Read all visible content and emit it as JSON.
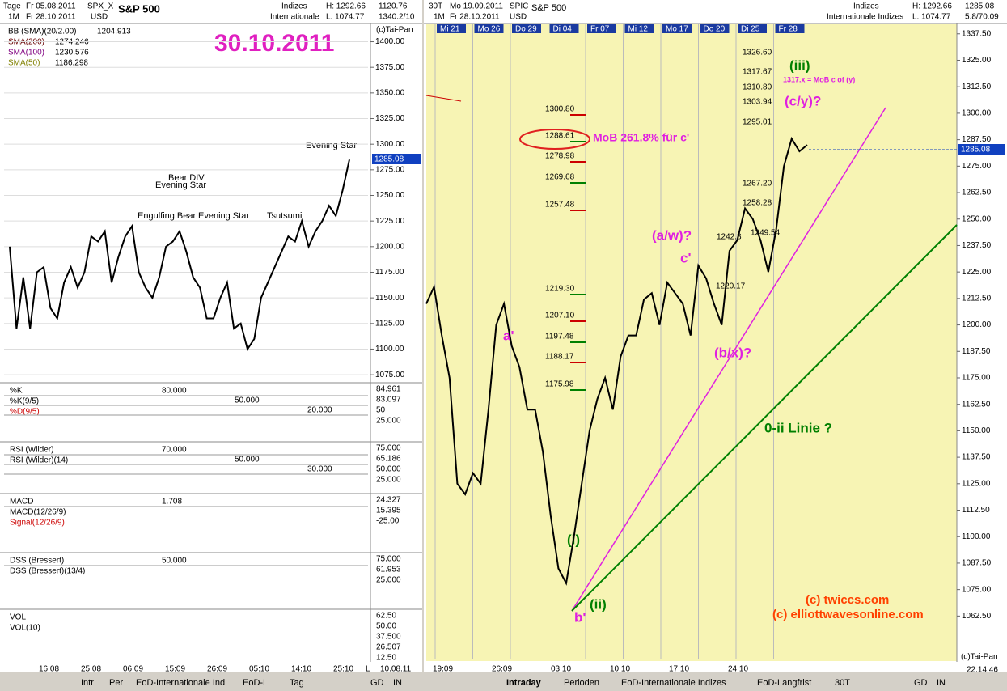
{
  "left": {
    "header": {
      "period": "Tage",
      "from": "Fr 05.08.2011",
      "symbol": "SPX_X",
      "name": "S&P 500",
      "range": "1M",
      "to": "Fr 28.10.2011",
      "currency": "USD",
      "market": "Indizes",
      "exchange": "Internationale",
      "high": "H: 1292.66",
      "low": "L: 1074.77",
      "v1": "1120.76",
      "v2": "1340.2/10"
    },
    "date_title": "30.10.2011",
    "copyright": "(c)Tai-Pan",
    "legend": [
      {
        "name": "BB (SMA)(20/2.00)",
        "value": "1204.913"
      },
      {
        "name": "SMA(200)",
        "value": "1274.246"
      },
      {
        "name": "SMA(100)",
        "value": "1230.576"
      },
      {
        "name": "SMA(50)",
        "value": "1186.298"
      }
    ],
    "annotations": [
      "Evening Star",
      "Bear DIV",
      "Evening Star",
      "Engulfing Bear",
      "Evening Star",
      "Tsutsumi"
    ],
    "price_tag": "1285.08",
    "chart": {
      "type": "line",
      "values": [
        1200,
        1120,
        1170,
        1120,
        1175,
        1180,
        1140,
        1130,
        1165,
        1180,
        1160,
        1175,
        1210,
        1205,
        1215,
        1165,
        1190,
        1210,
        1220,
        1175,
        1160,
        1150,
        1170,
        1200,
        1205,
        1215,
        1195,
        1170,
        1160,
        1130,
        1130,
        1150,
        1165,
        1120,
        1125,
        1100,
        1110,
        1150,
        1165,
        1180,
        1195,
        1210,
        1205,
        1225,
        1200,
        1215,
        1225,
        1240,
        1230,
        1255,
        1285
      ],
      "color": "#000000",
      "ylim": [
        1068,
        1417
      ],
      "yticks": [
        {
          "value": 1400,
          "label": "1400.00"
        },
        {
          "value": 1375,
          "label": "1375.00"
        },
        {
          "value": 1350,
          "label": "1350.00"
        },
        {
          "value": 1325,
          "label": "1325.00"
        },
        {
          "value": 1300,
          "label": "1300.00"
        },
        {
          "value": 1275,
          "label": "1275.00"
        },
        {
          "value": 1250,
          "label": "1250.00"
        },
        {
          "value": 1225,
          "label": "1225.00"
        },
        {
          "value": 1200,
          "label": "1200.00"
        },
        {
          "value": 1175,
          "label": "1175.00"
        },
        {
          "value": 1150,
          "label": "1150.00"
        },
        {
          "value": 1125,
          "label": "1125.00"
        },
        {
          "value": 1100,
          "label": "1100.00"
        },
        {
          "value": 1075,
          "label": "1075.00"
        }
      ]
    },
    "panels": [
      {
        "title": "%K",
        "lines": [
          "%K(9/5)",
          "%D(9/5)"
        ],
        "levels": [
          "80.000",
          "50.000",
          "20.000"
        ],
        "scale": [
          "84.961",
          "83.097",
          "50",
          "25.000"
        ]
      },
      {
        "title": "RSI (Wilder)",
        "lines": [
          "RSI (Wilder)(14)"
        ],
        "levels": [
          "70.000",
          "50.000",
          "30.000"
        ],
        "scale": [
          "75.000",
          "65.186",
          "50.000",
          "25.000"
        ]
      },
      {
        "title": "MACD",
        "lines": [
          "MACD(12/26/9)",
          "Signal(12/26/9)"
        ],
        "levels": [
          "1.708"
        ],
        "scale": [
          "24.327",
          "15.395",
          "-25.00"
        ]
      },
      {
        "title": "DSS (Bressert)",
        "lines": [
          "DSS (Bressert)(13/4)"
        ],
        "levels": [
          "50.000"
        ],
        "scale": [
          "75.000",
          "61.953",
          "25.000"
        ]
      },
      {
        "title": "VOL",
        "lines": [
          "VOL(10)"
        ],
        "levels": [],
        "scale": [
          "62.50",
          "50.00",
          "37.500",
          "26.507",
          "12.50"
        ]
      }
    ],
    "xlabels": [
      "16:08",
      "25:08",
      "06:09",
      "15:09",
      "26:09",
      "05:10",
      "14:10",
      "25:10",
      "L",
      "10.08.11"
    ],
    "tabs": [
      "Intr",
      "Per",
      "EoD-Internationale Ind",
      "EoD-L",
      "Tag",
      "GD",
      "IN"
    ]
  },
  "right": {
    "header": {
      "period": "30T",
      "from": "Mo 19.09.2011",
      "symbol": "SPIC",
      "name": "S&P 500",
      "range": "1M",
      "to": "Fr 28.10.2011",
      "currency": "USD",
      "market": "Indizes",
      "exchange": "Internationale Indizes",
      "high": "H: 1292.66",
      "low": "L: 1074.77",
      "v1": "1285.08",
      "v2": "5.8/70.09"
    },
    "days": [
      "Mi 21",
      "Mo 26",
      "Do 29",
      "Di 04",
      "Fr 07",
      "Mi 12",
      "Mo 17",
      "Do 20",
      "Di 25",
      "Fr 28"
    ],
    "chart": {
      "type": "line",
      "values": [
        1210,
        1218,
        1195,
        1175,
        1125,
        1120,
        1130,
        1125,
        1160,
        1200,
        1210,
        1190,
        1180,
        1160,
        1160,
        1140,
        1110,
        1085,
        1078,
        1100,
        1125,
        1150,
        1165,
        1175,
        1160,
        1185,
        1195,
        1195,
        1212,
        1215,
        1200,
        1220,
        1215,
        1210,
        1195,
        1228,
        1222,
        1210,
        1200,
        1235,
        1240,
        1255,
        1250,
        1240,
        1225,
        1245,
        1275,
        1288,
        1282,
        1285
      ],
      "color": "#000000",
      "ylim": [
        1042,
        1342
      ],
      "yticks": [
        {
          "value": 1337.5,
          "label": "1337.50"
        },
        {
          "value": 1325,
          "label": "1325.00"
        },
        {
          "value": 1312.5,
          "label": "1312.50"
        },
        {
          "value": 1300,
          "label": "1300.00"
        },
        {
          "value": 1287.5,
          "label": "1287.50"
        },
        {
          "value": 1275,
          "label": "1275.00"
        },
        {
          "value": 1262.5,
          "label": "1262.50"
        },
        {
          "value": 1250,
          "label": "1250.00"
        },
        {
          "value": 1237.5,
          "label": "1237.50"
        },
        {
          "value": 1225,
          "label": "1225.00"
        },
        {
          "value": 1212.5,
          "label": "1212.50"
        },
        {
          "value": 1200,
          "label": "1200.00"
        },
        {
          "value": 1187.5,
          "label": "1187.50"
        },
        {
          "value": 1175,
          "label": "1175.00"
        },
        {
          "value": 1162.5,
          "label": "1162.50"
        },
        {
          "value": 1150,
          "label": "1150.00"
        },
        {
          "value": 1137.5,
          "label": "1137.50"
        },
        {
          "value": 1125,
          "label": "1125.00"
        },
        {
          "value": 1112.5,
          "label": "1112.50"
        },
        {
          "value": 1100,
          "label": "1100.00"
        },
        {
          "value": 1087.5,
          "label": "1087.50"
        },
        {
          "value": 1075,
          "label": "1075.00"
        },
        {
          "value": 1062.5,
          "label": "1062.50"
        }
      ]
    },
    "levels_a": [
      "1300.80",
      "1288.61",
      "1278.98",
      "1269.68",
      "1257.48",
      "1219.30",
      "1207.10",
      "1197.48",
      "1188.17",
      "1175.98"
    ],
    "levels_b": [
      "1326.60",
      "1317.67",
      "1310.80",
      "1303.94",
      "1295.01",
      "1267.20",
      "1258.28",
      "1249.54",
      "1242.8",
      "1220.17"
    ],
    "annotations": {
      "mob": "MoB 261.8% für c'",
      "iii": "(iii)",
      "mob_note": "1317.x = MoB c of (y)",
      "cy": "(c/y)?",
      "aw": "(a/w)?",
      "c": "c'",
      "bx": "(b/x)?",
      "a": "a'",
      "b": "b'",
      "i": "(i)",
      "ii": "(ii)",
      "line": "0-ii Linie ?",
      "c1": "(c) twiccs.com",
      "c2": "(c) elliottwavesonline.com"
    },
    "copyright": "(c)Tai-Pan",
    "time": "22:14:46",
    "price_tag": "1285.08",
    "xlabels": [
      "19:09",
      "26:09",
      "03:10",
      "10:10",
      "17:10",
      "24:10"
    ],
    "tabs": [
      "Intraday",
      "Perioden",
      "EoD-Internationale Indizes",
      "EoD-Langfrist",
      "30T",
      "GD",
      "IN"
    ]
  }
}
